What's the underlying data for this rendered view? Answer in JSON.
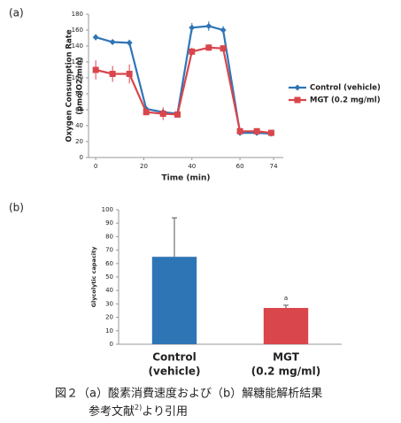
{
  "chart_data": [
    {
      "type": "line",
      "label": "(a)",
      "x_label": "Time (min)",
      "y_label": [
        "Oxygen Consumption Rate",
        "(pmolO2/min)"
      ],
      "x": [
        0,
        7,
        14,
        21,
        28,
        34,
        40,
        47,
        53,
        60,
        67,
        73
      ],
      "xlim": [
        -3,
        78
      ],
      "xticks": [
        0,
        20,
        40,
        60,
        74
      ],
      "ylim": [
        0,
        180
      ],
      "yticks": [
        0,
        20,
        40,
        60,
        80,
        100,
        120,
        140,
        160,
        180
      ],
      "legend": "right",
      "series": [
        {
          "name": "Control (vehicle)",
          "color": "#2e75b6",
          "values": [
            151,
            145,
            144,
            61,
            57,
            55,
            163,
            165,
            160,
            31,
            31,
            30
          ],
          "errors": [
            4,
            3,
            4,
            4,
            4,
            3,
            6,
            6,
            5,
            3,
            3,
            3
          ]
        },
        {
          "name": "MGT (0.2 mg/ml)",
          "color": "#d9464b",
          "values": [
            110,
            105,
            105,
            57,
            55,
            54,
            133,
            138,
            137,
            33,
            33,
            31
          ],
          "errors": [
            12,
            10,
            12,
            4,
            8,
            4,
            5,
            4,
            4,
            4,
            4,
            3
          ]
        }
      ]
    },
    {
      "type": "bar",
      "label": "(b)",
      "y_label": [
        "Glycolytic capacity"
      ],
      "categories": [
        [
          "Control",
          "(vehicle)"
        ],
        [
          "MGT",
          "(0.2 mg/ml)"
        ]
      ],
      "values": [
        65,
        27
      ],
      "errors": [
        29,
        2
      ],
      "colors": [
        "#2e75b6",
        "#d9464b"
      ],
      "annotations": [
        null,
        "a"
      ],
      "ylim": [
        0,
        100
      ],
      "yticks": [
        0,
        10,
        20,
        30,
        40,
        50,
        60,
        70,
        80,
        90,
        100
      ]
    }
  ],
  "caption": {
    "line1": "図２（a）酸素消費速度および（b）解糖能解析結果",
    "line2": [
      "参考文献",
      "2)",
      "より引用"
    ]
  }
}
